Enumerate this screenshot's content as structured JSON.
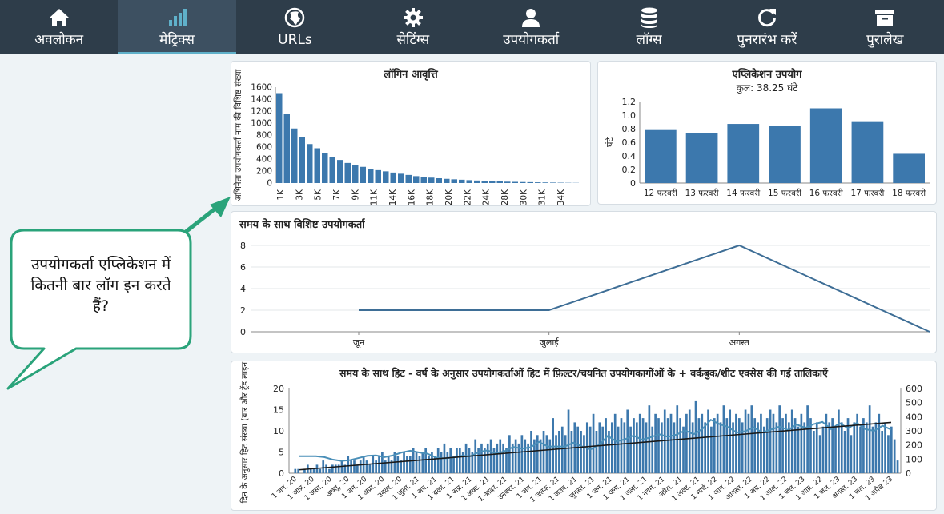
{
  "nav": {
    "items": [
      {
        "label": "अवलोकन",
        "icon": "home-icon"
      },
      {
        "label": "मेट्रिक्स",
        "icon": "bar-chart-icon"
      },
      {
        "label": "URLs",
        "icon": "globe-icon"
      },
      {
        "label": "सेटिंग्स",
        "icon": "gear-icon"
      },
      {
        "label": "उपयोगकर्ता",
        "icon": "user-icon"
      },
      {
        "label": "लॉग्स",
        "icon": "database-icon"
      },
      {
        "label": "पुनरारंभ करें",
        "icon": "refresh-icon"
      },
      {
        "label": "पुरालेख",
        "icon": "archive-icon"
      }
    ],
    "active_index": 1,
    "colors": {
      "bg": "#2e3d4a",
      "active_bg": "#3d5061",
      "active_bar": "#5fb0c9"
    }
  },
  "callout": {
    "text": "उपयोगकर्ता एप्लिकेशन में कितनी बार लॉग इन करते हैं?",
    "border_color": "#2aa37a"
  },
  "login_panel": {
    "title": "लॉगिन आवृत्ति"
  },
  "usage_panel": {
    "title": "एप्लिकेशन उपयोग",
    "subtitle": "कुल: 38.25 घंटे"
  },
  "unique_panel": {
    "title": "समय के साथ विशिष्ट उपयोगकर्ता"
  },
  "hits_panel": {
    "title": "समय के साथ हिट - वर्ष के अनुसार उपयोगकर्ताओं हिट में फ़िल्टर/चयनित उपयोगकागोंओं के + वर्कबुक/शीट एक्सेस की गई तालिकाएँ"
  },
  "chart_data": [
    {
      "id": "login_frequency",
      "type": "bar",
      "title": "लॉगिन आवृत्ति",
      "ylabel": "अभिनेता उपयोगकर्ता नाम की विशिष्ट संख्या",
      "ylim": [
        0,
        1600
      ],
      "yticks": [
        0,
        200,
        400,
        600,
        800,
        1000,
        1200,
        1400,
        1600
      ],
      "tick_labels": [
        "1K",
        "3K",
        "5K",
        "7K",
        "9K",
        "11K",
        "14K",
        "16K",
        "18K",
        "20K",
        "22K",
        "24K",
        "28K",
        "30K",
        "31K",
        "34K"
      ],
      "values": [
        1500,
        1150,
        910,
        760,
        650,
        580,
        500,
        430,
        385,
        335,
        300,
        270,
        240,
        215,
        195,
        175,
        155,
        135,
        115,
        100,
        90,
        80,
        70,
        62,
        55,
        48,
        42,
        36,
        31,
        27,
        23,
        20,
        17,
        15,
        12,
        10,
        8,
        6,
        4,
        3
      ],
      "color": "#3c78ad"
    },
    {
      "id": "app_usage",
      "type": "bar",
      "title": "एप्लिकेशन उपयोग",
      "subtitle": "कुल: 38.25 घंटे",
      "ylabel": "घंटे",
      "ylim": [
        0,
        1.2
      ],
      "yticks": [
        0,
        0.2,
        0.4,
        0.6,
        0.8,
        1.0,
        1.2
      ],
      "categories": [
        "12 फरवरी",
        "13 फरवरी",
        "14 फरवरी",
        "15 फरवरी",
        "16 फरवरी",
        "17 फरवरी",
        "18 फरवरी"
      ],
      "values": [
        0.78,
        0.73,
        0.87,
        0.84,
        1.1,
        0.91,
        0.43
      ],
      "color": "#3c78ad"
    },
    {
      "id": "unique_users",
      "type": "line",
      "title": "समय के साथ विशिष्ट उपयोगकर्ता",
      "ylim": [
        0,
        8
      ],
      "yticks": [
        0,
        2,
        4,
        6,
        8
      ],
      "categories": [
        "जून",
        "जुलाई",
        "अगस्त"
      ],
      "x": [
        0,
        1,
        2,
        3
      ],
      "y": [
        2,
        2,
        8,
        0
      ],
      "grid": true,
      "color": "#3e6e96"
    },
    {
      "id": "hits_over_time",
      "type": "bar",
      "title": "समय के साथ हिट - वर्ष के अनुसार उपयोगकर्ताओं हिट में फ़िल्टर/चयनित उपयोगकागोंओं के + वर्कबुक/शीट एक्सेस की गई तालिकाएँ",
      "ylabel": "दिन के अनुसार हिट संख्या (बार और ट्रेंड लाइन)",
      "ylim": [
        0,
        20
      ],
      "yticks": [
        0,
        5,
        10,
        15,
        20
      ],
      "y2lim": [
        0,
        600
      ],
      "y2ticks": [
        0,
        100,
        200,
        300,
        400,
        500,
        600
      ],
      "tick_labels": [
        "1 जन. 20",
        "1 जाप्र. 20",
        "1 जस्त. 20",
        "अक्तू. 20",
        "1 जन. 20",
        "1 अप्रा. 20",
        "उनवर. 20",
        "1 जुला. 21",
        "1 अप्र. 21",
        "1 ग्रका. 21",
        "1 अप्र. 21",
        "1 अक्ट. 21",
        "1 आदर. 21",
        "उनवरर. 21",
        "1 जम. 21",
        "1 जतक. 21",
        "1 जतव. 21",
        "जुगस्त. 21",
        "1 जन. 21",
        "1 जना. 21",
        "1 जला. 21",
        "1 नवम. 21",
        "अप्रैल. 21",
        "1 अक्ट. 21",
        "1 मार्च. 22",
        "1 जान. 22",
        "आगस्त. 22",
        "1 अग्र. 22",
        "1 आल. 22",
        "1 जल. 23",
        "1 आग्र. 22",
        "1 जल. 23",
        "अगस्त. 23",
        "1 जल. 23",
        "1 अप्रैल 23"
      ],
      "bar_values": [
        0,
        1,
        1,
        0,
        1,
        2,
        1,
        1,
        2,
        1,
        3,
        2,
        1,
        2,
        2,
        2,
        3,
        2,
        4,
        3,
        3,
        2,
        3,
        4,
        3,
        2,
        4,
        3,
        4,
        5,
        3,
        4,
        3,
        5,
        4,
        3,
        5,
        4,
        4,
        6,
        5,
        4,
        5,
        6,
        4,
        5,
        4,
        6,
        5,
        7,
        5,
        6,
        4,
        6,
        6,
        5,
        7,
        6,
        5,
        8,
        6,
        7,
        6,
        7,
        8,
        6,
        7,
        8,
        7,
        6,
        9,
        7,
        8,
        7,
        9,
        8,
        7,
        10,
        8,
        9,
        8,
        10,
        9,
        8,
        13,
        9,
        10,
        11,
        9,
        15,
        10,
        12,
        11,
        10,
        9,
        12,
        11,
        14,
        10,
        12,
        11,
        13,
        10,
        12,
        14,
        11,
        13,
        12,
        15,
        11,
        13,
        12,
        14,
        13,
        12,
        16,
        11,
        14,
        13,
        12,
        15,
        13,
        14,
        12,
        16,
        13,
        11,
        14,
        15,
        12,
        17,
        13,
        14,
        12,
        15,
        11,
        13,
        14,
        12,
        16,
        13,
        15,
        12,
        14,
        13,
        12,
        15,
        14,
        16,
        13,
        12,
        14,
        11,
        13,
        15,
        14,
        12,
        16,
        13,
        14,
        12,
        15,
        13,
        11,
        14,
        12,
        16,
        13,
        10,
        12,
        9,
        11,
        14,
        12,
        13,
        11,
        15,
        12,
        10,
        13,
        9,
        12,
        14,
        11,
        13,
        12,
        16,
        11,
        12,
        14,
        10,
        12,
        9,
        11,
        8,
        3
      ],
      "line_values": [
        4,
        4,
        4,
        3.8,
        3.2,
        2.9,
        3.1,
        3.6,
        4.1,
        4.2,
        3.8,
        4.2,
        4.9,
        5.3,
        4.9,
        4.6,
        3.7,
        3.5,
        3.7,
        4.1,
        4.0,
        5.0,
        5.4,
        4.6,
        5.2,
        6.2,
        5.8,
        6.1,
        7.4,
        6.3,
        6.3,
        6.3,
        7.2,
        6.3,
        5.6,
        6.7,
        8.8,
        7.5,
        8.0,
        8.9,
        7.9,
        8.5,
        9.2,
        8.6,
        9.1,
        10.1,
        9.2,
        10.4,
        12.6,
        11.6,
        10.9,
        9.6,
        9.9,
        10.8,
        9.6,
        10.3,
        11.0,
        10.2,
        11.5,
        10.7,
        11.6,
        12.1,
        10.4,
        11.8,
        10.6,
        11.9,
        10.4,
        10.0,
        11.2,
        10.3
      ],
      "trend": [
        0.8,
        12
      ],
      "colors": {
        "bars": "#3c78ad",
        "line": "#4a8fb8",
        "trend": "#1a1a1a"
      }
    }
  ]
}
